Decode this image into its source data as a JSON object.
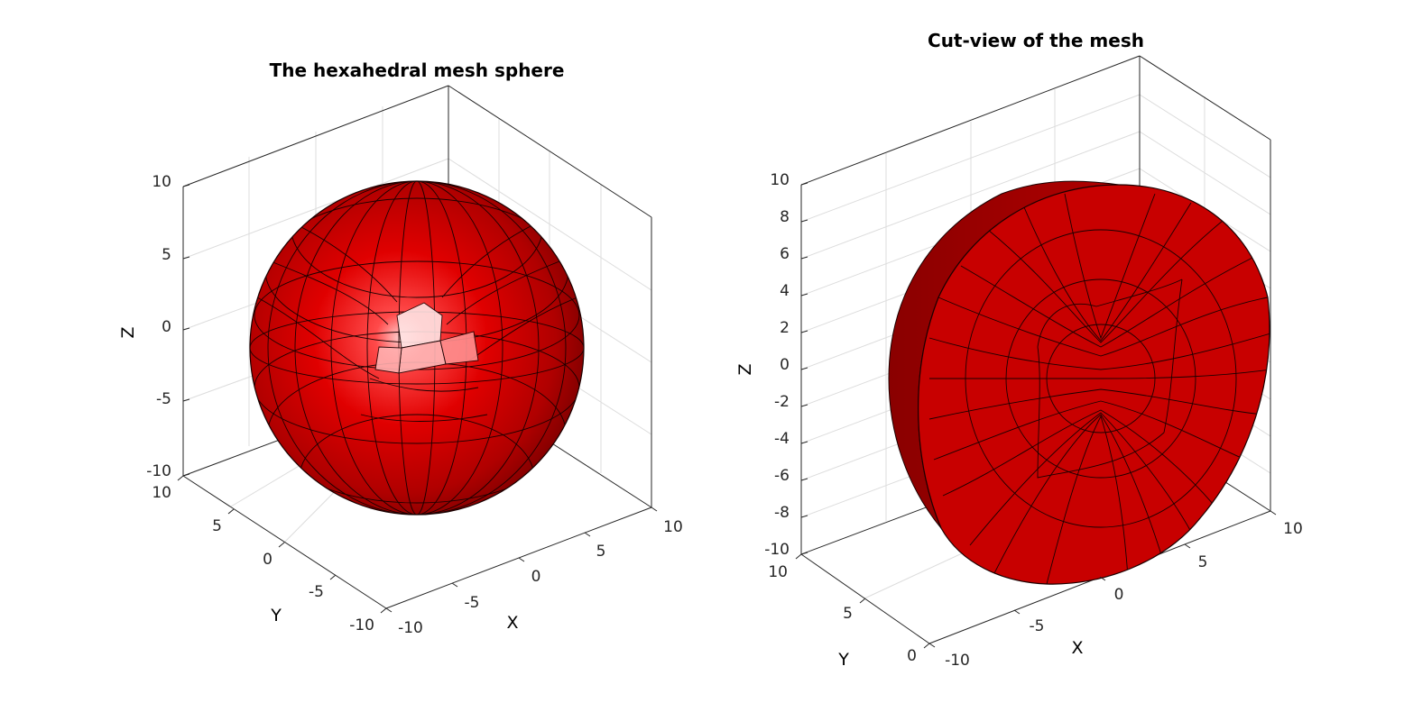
{
  "colors": {
    "background": "#ffffff",
    "axis": "#262626",
    "grid": "#dcdcdc",
    "mesh_face": "#cc0000",
    "mesh_edge": "#1a0000"
  },
  "panels": [
    {
      "title": "The hexahedral mesh sphere",
      "xlabel": "X",
      "ylabel": "Y",
      "zlabel": "Z",
      "z_ticks": [
        "10",
        "5",
        "0",
        "-5",
        "-10"
      ],
      "y_ticks": [
        "10",
        "5",
        "0",
        "-5",
        "-10"
      ],
      "x_ticks": [
        "-10",
        "-5",
        "0",
        "5",
        "10"
      ],
      "object": "hexahedral-mesh-sphere"
    },
    {
      "title": "Cut-view of the mesh",
      "xlabel": "X",
      "ylabel": "Y",
      "zlabel": "Z",
      "z_ticks": [
        "10",
        "8",
        "6",
        "4",
        "2",
        "0",
        "-2",
        "-4",
        "-6",
        "-8",
        "-10"
      ],
      "y_ticks": [
        "10",
        "5",
        "0"
      ],
      "x_ticks": [
        "-10",
        "-5",
        "0",
        "5",
        "10"
      ],
      "object": "cut-half-sphere"
    }
  ]
}
